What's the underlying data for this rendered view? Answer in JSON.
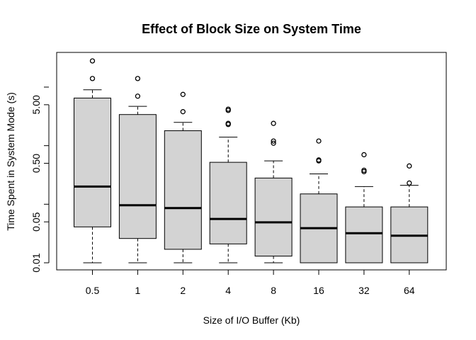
{
  "chart_data": {
    "type": "boxplot",
    "title": "Effect of Block Size on System Time",
    "xlabel": "Size of I/O Buffer (Kb)",
    "ylabel": "Time Spent in System Mode (s)",
    "y_scale": "log",
    "ylim": [
      0.01,
      20
    ],
    "y_ticks": [
      0.01,
      0.05,
      0.5,
      5
    ],
    "y_tick_labels": [
      "0.01",
      "0.05",
      "0.50",
      "5.00"
    ],
    "box_fill": "#d3d3d3",
    "categories": [
      "0.5",
      "1",
      "2",
      "4",
      "8",
      "16",
      "32",
      "64"
    ],
    "boxes": [
      {
        "label": "0.5",
        "whisker_low": 0.01,
        "q1": 0.041,
        "median": 0.2,
        "q3": 6.5,
        "whisker_high": 9.0,
        "outliers": [
          28,
          14
        ]
      },
      {
        "label": "1",
        "whisker_low": 0.01,
        "q1": 0.026,
        "median": 0.096,
        "q3": 3.4,
        "whisker_high": 4.7,
        "outliers": [
          14,
          7.0
        ]
      },
      {
        "label": "2",
        "whisker_low": 0.01,
        "q1": 0.017,
        "median": 0.086,
        "q3": 1.8,
        "whisker_high": 2.5,
        "outliers": [
          7.5,
          3.8
        ]
      },
      {
        "label": "4",
        "whisker_low": 0.01,
        "q1": 0.021,
        "median": 0.056,
        "q3": 0.52,
        "whisker_high": 1.4,
        "outliers": [
          4.2,
          4.0,
          2.4,
          2.3
        ]
      },
      {
        "label": "8",
        "whisker_low": 0.01,
        "q1": 0.013,
        "median": 0.049,
        "q3": 0.28,
        "whisker_high": 0.55,
        "outliers": [
          2.4,
          1.2,
          1.1
        ]
      },
      {
        "label": "16",
        "whisker_low": 0.01,
        "q1": 0.01,
        "median": 0.039,
        "q3": 0.15,
        "whisker_high": 0.33,
        "outliers": [
          1.2,
          0.57,
          0.55
        ]
      },
      {
        "label": "32",
        "whisker_low": 0.01,
        "q1": 0.01,
        "median": 0.032,
        "q3": 0.09,
        "whisker_high": 0.2,
        "outliers": [
          0.7,
          0.38,
          0.36
        ]
      },
      {
        "label": "64",
        "whisker_low": 0.01,
        "q1": 0.01,
        "median": 0.029,
        "q3": 0.09,
        "whisker_high": 0.21,
        "outliers": [
          0.45,
          0.23
        ]
      }
    ]
  }
}
